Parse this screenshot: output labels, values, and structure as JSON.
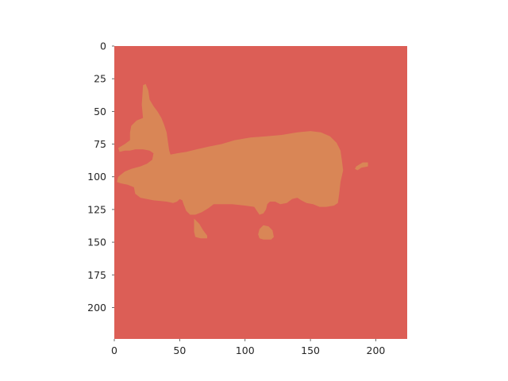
{
  "chart_data": {
    "type": "heatmap",
    "title": "",
    "xlabel": "",
    "ylabel": "",
    "image_size": [
      224,
      224
    ],
    "xlim": [
      0,
      224
    ],
    "ylim": [
      224,
      0
    ],
    "x_ticks": [
      "0",
      "50",
      "100",
      "150",
      "200"
    ],
    "y_ticks": [
      "0",
      "25",
      "50",
      "75",
      "100",
      "125",
      "150",
      "175",
      "200"
    ],
    "x_tick_values": [
      0,
      50,
      100,
      150,
      200
    ],
    "y_tick_values": [
      0,
      25,
      50,
      75,
      100,
      125,
      150,
      175,
      200
    ],
    "grid": false,
    "legend": "none",
    "colors": {
      "background_class": "#dc5e56",
      "object_class": "#d98656",
      "tick_text": "#262626",
      "tick_mark": "#444444"
    },
    "regions": [
      {
        "class": "object",
        "part": "body",
        "polygon": [
          [
            22,
            30
          ],
          [
            24,
            29
          ],
          [
            26,
            34
          ],
          [
            27,
            41
          ],
          [
            30,
            46
          ],
          [
            33,
            50
          ],
          [
            36,
            55
          ],
          [
            38,
            60
          ],
          [
            40,
            66
          ],
          [
            41,
            73
          ],
          [
            42,
            80
          ],
          [
            43,
            83
          ],
          [
            48,
            82
          ],
          [
            55,
            81
          ],
          [
            63,
            79
          ],
          [
            72,
            77
          ],
          [
            82,
            75
          ],
          [
            92,
            72
          ],
          [
            104,
            70
          ],
          [
            116,
            69
          ],
          [
            128,
            68
          ],
          [
            140,
            66
          ],
          [
            150,
            65
          ],
          [
            158,
            66
          ],
          [
            165,
            69
          ],
          [
            170,
            74
          ],
          [
            173,
            80
          ],
          [
            174,
            87
          ],
          [
            175,
            95
          ],
          [
            173,
            104
          ],
          [
            172,
            113
          ],
          [
            171,
            120
          ],
          [
            168,
            122
          ],
          [
            162,
            123
          ],
          [
            157,
            123
          ],
          [
            152,
            121
          ],
          [
            147,
            120
          ],
          [
            143,
            118
          ],
          [
            140,
            116
          ],
          [
            136,
            117
          ],
          [
            132,
            120
          ],
          [
            127,
            121
          ],
          [
            123,
            119
          ],
          [
            119,
            119
          ],
          [
            117,
            121
          ],
          [
            116,
            125
          ],
          [
            114,
            128
          ],
          [
            111,
            129
          ],
          [
            109,
            126
          ],
          [
            107,
            123
          ],
          [
            100,
            122
          ],
          [
            90,
            121
          ],
          [
            80,
            121
          ],
          [
            76,
            121
          ],
          [
            72,
            124
          ],
          [
            67,
            127
          ],
          [
            62,
            129
          ],
          [
            58,
            129
          ],
          [
            55,
            126
          ],
          [
            53,
            121
          ],
          [
            52,
            118
          ],
          [
            50,
            117
          ],
          [
            48,
            119
          ],
          [
            45,
            120
          ],
          [
            40,
            119
          ],
          [
            30,
            118
          ],
          [
            20,
            116
          ],
          [
            16,
            113
          ],
          [
            15,
            108
          ],
          [
            10,
            106
          ],
          [
            5,
            105
          ],
          [
            2,
            104
          ],
          [
            3,
            100
          ],
          [
            8,
            96
          ],
          [
            13,
            94
          ],
          [
            20,
            92
          ],
          [
            25,
            90
          ],
          [
            29,
            87
          ],
          [
            30,
            82
          ],
          [
            27,
            80
          ],
          [
            22,
            79
          ],
          [
            16,
            79
          ],
          [
            12,
            80
          ],
          [
            8,
            80
          ],
          [
            4,
            81
          ],
          [
            3,
            78
          ],
          [
            8,
            75
          ],
          [
            12,
            72
          ],
          [
            12,
            66
          ],
          [
            13,
            61
          ],
          [
            17,
            57
          ],
          [
            22,
            55
          ],
          [
            21,
            45
          ]
        ]
      },
      {
        "class": "object",
        "part": "leg-left",
        "polygon": [
          [
            61,
            132
          ],
          [
            65,
            136
          ],
          [
            68,
            141
          ],
          [
            71,
            145
          ],
          [
            71,
            147
          ],
          [
            66,
            147
          ],
          [
            62,
            146
          ],
          [
            61,
            142
          ],
          [
            61,
            137
          ]
        ]
      },
      {
        "class": "object",
        "part": "leg-right",
        "polygon": [
          [
            114,
            137
          ],
          [
            118,
            138
          ],
          [
            121,
            141
          ],
          [
            122,
            146
          ],
          [
            120,
            148
          ],
          [
            114,
            148
          ],
          [
            111,
            147
          ],
          [
            110,
            144
          ],
          [
            111,
            140
          ]
        ]
      },
      {
        "class": "object",
        "part": "speck",
        "polygon": [
          [
            185,
            92
          ],
          [
            190,
            89
          ],
          [
            194,
            89
          ],
          [
            194,
            92
          ],
          [
            189,
            93
          ],
          [
            186,
            95
          ],
          [
            184,
            94
          ]
        ]
      }
    ]
  }
}
